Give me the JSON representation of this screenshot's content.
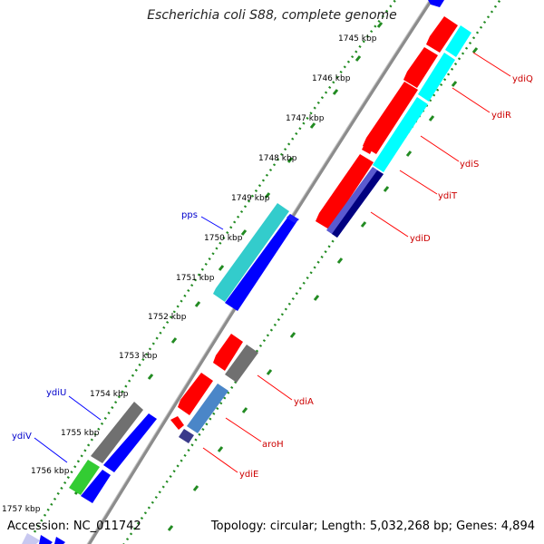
{
  "title": "Escherichia coli S88, complete genome",
  "footer": {
    "accession": "Accession: NC_011742",
    "summary": "Topology: circular; Length: 5,032,268 bp; Genes: 4,894"
  },
  "ticks": [
    "1745 kbp",
    "1746 kbp",
    "1747 kbp",
    "1748 kbp",
    "1749 kbp",
    "1750 kbp",
    "1751 kbp",
    "1752 kbp",
    "1753 kbp",
    "1754 kbp",
    "1755 kbp",
    "1756 kbp",
    "1757 kbp"
  ],
  "genes": {
    "ydiQ": "ydiQ",
    "ydiR": "ydiR",
    "ydiS": "ydiS",
    "ydiT": "ydiT",
    "ydiD": "ydiD",
    "pps": "pps",
    "ydiA": "ydiA",
    "aroH": "aroH",
    "ydiE": "ydiE",
    "ydiU": "ydiU",
    "ydiV": "ydiV"
  },
  "colors": {
    "red_label": "#cc0000",
    "blue_label": "#0000cc",
    "feature_red": "#ff0000",
    "feature_cyan": "#00ffff",
    "feature_teal": "#33cccc",
    "feature_blue": "#0000ff",
    "feature_navy": "#000080",
    "feature_slate": "#5555cc",
    "feature_steel": "#4a86c8",
    "feature_gray": "#707070",
    "feature_green": "#33cc33",
    "backbone": "#8c8c8c",
    "tick_green": "#228b22"
  }
}
